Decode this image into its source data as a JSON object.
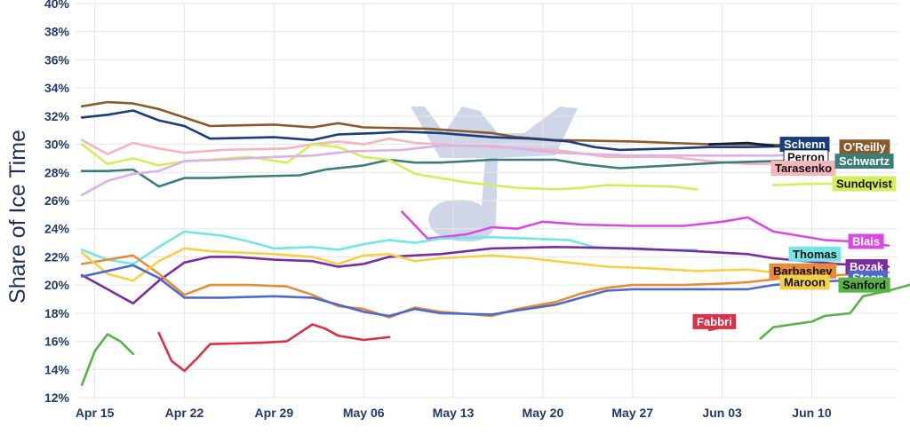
{
  "chart_data": {
    "type": "line",
    "title": "",
    "xlabel": "",
    "ylabel": "Share of Ice Time",
    "x_ticks": [
      "Apr 15",
      "Apr 22",
      "Apr 29",
      "May 06",
      "May 13",
      "May 20",
      "May 27",
      "Jun 03",
      "Jun 10"
    ],
    "xlim": [
      2.5,
      66.7
    ],
    "y_ticks": [
      "12%",
      "14%",
      "16%",
      "18%",
      "20%",
      "22%",
      "24%",
      "26%",
      "28%",
      "30%",
      "32%",
      "34%",
      "36%",
      "38%",
      "40%"
    ],
    "ylim": [
      12,
      40
    ],
    "grid": true,
    "legend": "labels at line ends",
    "x_note": "x = days since Apr 11 (tick labels show dates)",
    "series": [
      {
        "name": "O'Reilly",
        "color": "#8b5a2b",
        "label_bg": "#8b5a2b",
        "label_fg": "#ffffff",
        "points": [
          [
            3,
            32.7
          ],
          [
            5,
            33
          ],
          [
            7,
            32.9
          ],
          [
            9,
            32.5
          ],
          [
            11,
            31.9
          ],
          [
            13,
            31.3
          ],
          [
            18,
            31.4
          ],
          [
            21,
            31.2
          ],
          [
            23,
            31.5
          ],
          [
            25,
            31.2
          ],
          [
            30,
            31.1
          ],
          [
            35,
            30.8
          ],
          [
            37,
            30.5
          ],
          [
            40,
            30.3
          ],
          [
            46,
            30.2
          ],
          [
            49,
            30.1
          ],
          [
            52,
            30
          ],
          [
            55,
            30
          ],
          [
            60,
            29.9
          ]
        ]
      },
      {
        "name": "Schenn",
        "color": "#1a3d7c",
        "label_bg": "#1a3d7c",
        "label_fg": "#ffffff",
        "points": [
          [
            3,
            31.9
          ],
          [
            5,
            32.1
          ],
          [
            7,
            32.4
          ],
          [
            9,
            31.7
          ],
          [
            11,
            31.3
          ],
          [
            13,
            30.4
          ],
          [
            18,
            30.5
          ],
          [
            21,
            30.3
          ],
          [
            23,
            30.7
          ],
          [
            26,
            30.8
          ],
          [
            28,
            30.9
          ],
          [
            31,
            30.8
          ],
          [
            35,
            30.5
          ],
          [
            38,
            30.4
          ],
          [
            41,
            30.2
          ],
          [
            43,
            29.8
          ],
          [
            45,
            29.6
          ],
          [
            49,
            29.7
          ],
          [
            52,
            29.8
          ],
          [
            55,
            29.8
          ],
          [
            60,
            29.9
          ]
        ]
      },
      {
        "name": "Perron",
        "color": "#0d1f3c",
        "label_bg": "#ffffff",
        "label_fg": "#111111",
        "points": [
          [
            52,
            30
          ],
          [
            55,
            30.1
          ],
          [
            57,
            29.9
          ]
        ]
      },
      {
        "name": "Tarasenko",
        "color": "#f4b6bd",
        "label_bg": "#f4b6bd",
        "label_fg": "#111111",
        "points": [
          [
            3,
            30.3
          ],
          [
            5,
            29.3
          ],
          [
            7,
            30.1
          ],
          [
            9,
            29.7
          ],
          [
            11,
            29.4
          ],
          [
            14,
            29.6
          ],
          [
            19,
            29.7
          ],
          [
            21,
            30
          ],
          [
            23,
            30.2
          ],
          [
            25,
            30
          ],
          [
            27,
            30.4
          ],
          [
            29,
            30.1
          ],
          [
            33,
            29.9
          ],
          [
            40,
            29.6
          ],
          [
            44,
            29.1
          ],
          [
            49,
            29.1
          ],
          [
            52,
            28.8
          ],
          [
            55,
            28.6
          ],
          [
            60,
            28.6
          ]
        ]
      },
      {
        "name": "Schwartz",
        "color": "#3c7d7b",
        "label_bg": "#3c7d7b",
        "label_fg": "#ffffff",
        "points": [
          [
            3,
            28.1
          ],
          [
            5,
            28.1
          ],
          [
            7,
            28.2
          ],
          [
            9,
            27
          ],
          [
            11,
            27.6
          ],
          [
            13,
            27.6
          ],
          [
            16,
            27.7
          ],
          [
            20,
            27.8
          ],
          [
            22,
            28.2
          ],
          [
            25,
            28.5
          ],
          [
            27,
            28.9
          ],
          [
            29,
            28.7
          ],
          [
            31,
            28.7
          ],
          [
            35,
            28.9
          ],
          [
            40,
            28.9
          ],
          [
            42,
            28.6
          ],
          [
            45,
            28.3
          ],
          [
            49,
            28.5
          ],
          [
            53,
            28.7
          ],
          [
            57,
            28.8
          ],
          [
            60,
            28.8
          ]
        ]
      },
      {
        "name": "Sundqvist",
        "color": "#d2ee5c",
        "label_bg": "#d2ee5c",
        "label_fg": "#111111",
        "points": [
          [
            3,
            30
          ],
          [
            5,
            28.6
          ],
          [
            7,
            29
          ],
          [
            9,
            28.5
          ],
          [
            11,
            28.8
          ],
          [
            13,
            28.9
          ],
          [
            16,
            29.1
          ],
          [
            19,
            28.7
          ],
          [
            21,
            30
          ],
          [
            23,
            29.8
          ],
          [
            25,
            29.1
          ],
          [
            27,
            28.9
          ],
          [
            29,
            27.9
          ],
          [
            33,
            27.3
          ],
          [
            37,
            26.9
          ],
          [
            40,
            26.8
          ],
          [
            42,
            26.9
          ],
          [
            44,
            27.1
          ],
          [
            49,
            27
          ],
          [
            51,
            26.8
          ]
        ]
      },
      {
        "name": "",
        "color": "#d2ee5c",
        "label_bg": "",
        "label_fg": "",
        "points": [
          [
            57,
            27.1
          ],
          [
            60,
            27.2
          ],
          [
            63,
            27.2
          ]
        ]
      },
      {
        "name": "",
        "color": "#dcb0e8",
        "label_bg": "",
        "label_fg": "",
        "points": [
          [
            3,
            26.4
          ],
          [
            5,
            27.4
          ],
          [
            7,
            27.9
          ],
          [
            9,
            28.1
          ],
          [
            11,
            28.8
          ],
          [
            14,
            28.9
          ],
          [
            18,
            29.1
          ],
          [
            21,
            29.2
          ],
          [
            24,
            29.5
          ],
          [
            28,
            29.6
          ],
          [
            31,
            29.9
          ],
          [
            35,
            29.9
          ],
          [
            40,
            29.4
          ],
          [
            46,
            29.2
          ],
          [
            52,
            29.2
          ],
          [
            57,
            29.2
          ],
          [
            60,
            29.3
          ]
        ]
      },
      {
        "name": "Blais",
        "color": "#d94be0",
        "label_bg": "#d94be0",
        "label_fg": "#ffffff",
        "points": [
          [
            28,
            25.2
          ],
          [
            30,
            23.3
          ],
          [
            33,
            23.6
          ],
          [
            35,
            24.1
          ],
          [
            37,
            24
          ],
          [
            39,
            24.5
          ],
          [
            42,
            24.3
          ],
          [
            46,
            24.2
          ],
          [
            50,
            24.2
          ],
          [
            53,
            24.5
          ],
          [
            55,
            24.8
          ],
          [
            57,
            23.8
          ],
          [
            59,
            23.5
          ],
          [
            61,
            23.2
          ],
          [
            63,
            23.1
          ],
          [
            66,
            22.8
          ]
        ]
      },
      {
        "name": "Thomas",
        "color": "#74e4e4",
        "label_bg": "#74e4e4",
        "label_fg": "#111111",
        "points": [
          [
            3,
            22.5
          ],
          [
            5,
            21.8
          ],
          [
            7,
            21.5
          ],
          [
            9,
            22.7
          ],
          [
            11,
            23.8
          ],
          [
            14,
            23.5
          ],
          [
            16,
            23.1
          ],
          [
            18,
            22.6
          ],
          [
            21,
            22.7
          ],
          [
            23,
            22.5
          ],
          [
            25,
            22.9
          ],
          [
            27,
            23.2
          ],
          [
            29,
            23
          ],
          [
            31,
            23.3
          ],
          [
            35,
            23.4
          ],
          [
            38,
            23.3
          ],
          [
            41,
            23.2
          ],
          [
            43,
            22.7
          ],
          [
            47,
            22.5
          ],
          [
            51,
            22.5
          ]
        ]
      },
      {
        "name": "Bozak",
        "color": "#7a2da0",
        "label_bg": "#7a2da0",
        "label_fg": "#ffffff",
        "points": [
          [
            3,
            20.7
          ],
          [
            5,
            19.7
          ],
          [
            7,
            18.7
          ],
          [
            9,
            20.3
          ],
          [
            11,
            21.6
          ],
          [
            13,
            22
          ],
          [
            15,
            22
          ],
          [
            18,
            21.8
          ],
          [
            21,
            21.7
          ],
          [
            23,
            21.3
          ],
          [
            25,
            21.5
          ],
          [
            27,
            22
          ],
          [
            29,
            22.1
          ],
          [
            31,
            22.2
          ],
          [
            35,
            22.6
          ],
          [
            40,
            22.7
          ],
          [
            46,
            22.6
          ],
          [
            51,
            22.4
          ],
          [
            55,
            22.2
          ],
          [
            57,
            21.9
          ],
          [
            62,
            21.5
          ],
          [
            66,
            21.3
          ]
        ]
      },
      {
        "name": "Barbashev",
        "color": "#e58b3a",
        "label_bg": "#e58b3a",
        "label_fg": "#111111",
        "points": [
          [
            3,
            21.5
          ],
          [
            5,
            21.8
          ],
          [
            7,
            22.1
          ],
          [
            9,
            20.8
          ],
          [
            11,
            19.3
          ],
          [
            13,
            20
          ],
          [
            16,
            20
          ],
          [
            19,
            19.9
          ],
          [
            21,
            19.3
          ],
          [
            23,
            18.5
          ],
          [
            25,
            18.3
          ],
          [
            27,
            17.7
          ],
          [
            29,
            18.4
          ],
          [
            31,
            18.1
          ],
          [
            35,
            17.8
          ],
          [
            37,
            18.3
          ],
          [
            40,
            18.8
          ],
          [
            42,
            19.4
          ],
          [
            44,
            19.8
          ],
          [
            46,
            20
          ],
          [
            50,
            20
          ],
          [
            53,
            20.1
          ],
          [
            55,
            20.2
          ],
          [
            58,
            20.5
          ],
          [
            62,
            20.7
          ],
          [
            66,
            20.9
          ]
        ]
      },
      {
        "name": "Maroon",
        "color": "#f5d04a",
        "label_bg": "#f5d04a",
        "label_fg": "#111111",
        "points": [
          [
            3,
            22.3
          ],
          [
            5,
            20.8
          ],
          [
            7,
            20.3
          ],
          [
            9,
            21.7
          ],
          [
            11,
            22.6
          ],
          [
            13,
            22.4
          ],
          [
            18,
            22.2
          ],
          [
            21,
            22
          ],
          [
            23,
            21.5
          ],
          [
            25,
            22.1
          ],
          [
            27,
            22.2
          ],
          [
            29,
            21.7
          ],
          [
            31,
            21.9
          ],
          [
            35,
            22.1
          ],
          [
            38,
            21.9
          ],
          [
            41,
            21.6
          ],
          [
            44,
            21.3
          ],
          [
            47,
            21.2
          ],
          [
            51,
            21
          ],
          [
            55,
            21.1
          ],
          [
            57,
            20.9
          ],
          [
            60,
            20.7
          ]
        ]
      },
      {
        "name": "Steen",
        "color": "#4d69cc",
        "label_bg": "#4d69cc",
        "label_fg": "#ffffff",
        "points": [
          [
            3,
            20.6
          ],
          [
            5,
            21
          ],
          [
            7,
            21.4
          ],
          [
            9,
            20.5
          ],
          [
            11,
            19.1
          ],
          [
            14,
            19.1
          ],
          [
            18,
            19.2
          ],
          [
            21,
            19.1
          ],
          [
            23,
            18.6
          ],
          [
            25,
            18.1
          ],
          [
            27,
            17.8
          ],
          [
            29,
            18.3
          ],
          [
            31,
            18
          ],
          [
            35,
            17.9
          ],
          [
            37,
            18.2
          ],
          [
            40,
            18.6
          ],
          [
            42,
            19.1
          ],
          [
            44,
            19.6
          ],
          [
            46,
            19.7
          ],
          [
            50,
            19.7
          ],
          [
            55,
            19.7
          ],
          [
            57,
            20
          ],
          [
            60,
            20.2
          ],
          [
            64,
            20.4
          ],
          [
            66,
            20.3
          ]
        ]
      },
      {
        "name": "Sanford",
        "color": "#58b149",
        "label_bg": "#58b149",
        "label_fg": "#111111",
        "points": [
          [
            56,
            16.2
          ],
          [
            57,
            17
          ],
          [
            60,
            17.4
          ],
          [
            61,
            17.8
          ],
          [
            63,
            18
          ],
          [
            64,
            19.2
          ],
          [
            66,
            19.6
          ],
          [
            68,
            20.1
          ]
        ]
      },
      {
        "name": "",
        "color": "#58b149",
        "label_bg": "",
        "label_fg": "",
        "points": [
          [
            3,
            12.9
          ],
          [
            4,
            15.3
          ],
          [
            5,
            16.5
          ],
          [
            6,
            16
          ],
          [
            7,
            15.1
          ]
        ]
      },
      {
        "name": "Fabbri",
        "color": "#d83148",
        "label_bg": "#d83148",
        "label_fg": "#ffffff",
        "points": [
          [
            9,
            16.6
          ],
          [
            10,
            14.6
          ],
          [
            11,
            13.9
          ],
          [
            12,
            14.8
          ],
          [
            13,
            15.8
          ],
          [
            17,
            15.9
          ],
          [
            19,
            16
          ],
          [
            20,
            16.6
          ],
          [
            21,
            17.2
          ],
          [
            22,
            16.9
          ],
          [
            23,
            16.4
          ],
          [
            25,
            16.1
          ],
          [
            27,
            16.3
          ]
        ]
      },
      {
        "name": "",
        "color": "#d83148",
        "label_bg": "",
        "label_fg": "",
        "points": [
          [
            52,
            16.8
          ],
          [
            53,
            17
          ]
        ]
      }
    ]
  }
}
